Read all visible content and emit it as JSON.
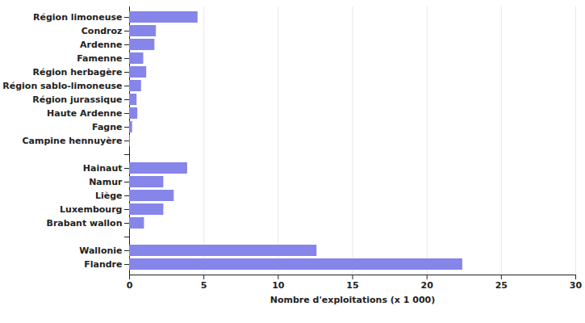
{
  "chart_data": {
    "type": "bar",
    "orientation": "horizontal",
    "categories": [
      "Région limoneuse",
      "Condroz",
      "Ardenne",
      "Famenne",
      "Région herbagère",
      "Région sablo-limoneuse",
      "Région jurassique",
      "Haute Ardenne",
      "Fagne",
      "Campine hennuyère",
      null,
      "Hainaut",
      "Namur",
      "Liège",
      "Luxembourg",
      "Brabant wallon",
      null,
      "Wallonie",
      "Flandre"
    ],
    "values": [
      4.6,
      1.8,
      1.7,
      0.95,
      1.15,
      0.8,
      0.5,
      0.55,
      0.2,
      0.05,
      null,
      3.9,
      2.3,
      3.0,
      2.3,
      1.0,
      null,
      12.6,
      22.4
    ],
    "color": "#8585ea",
    "xlabel": "Nombre d'exploitations (x 1 000)",
    "xlim": [
      0,
      30
    ],
    "xticks": [
      0,
      5,
      10,
      15,
      20,
      25,
      30
    ],
    "grid": true
  }
}
